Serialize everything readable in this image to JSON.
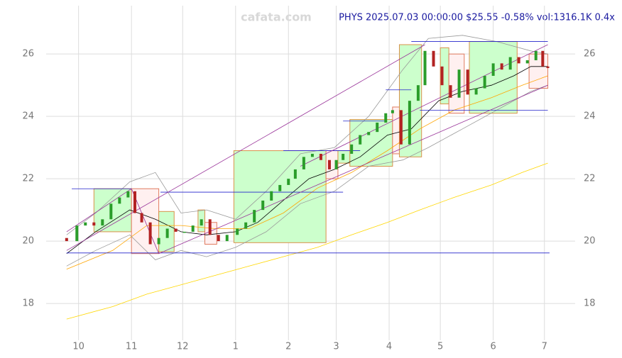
{
  "chart_data": {
    "type": "candlestick",
    "watermark": "cafata.com",
    "title": "PHYS 2025.07.03 00:00:00 $25.55 -0.58% vol:1316.1K 0.4x",
    "xlim": [
      -19,
      291
    ],
    "ylim": [
      16.82,
      27.55
    ],
    "xticks": [
      {
        "value": 0,
        "label": "10"
      },
      {
        "value": 31,
        "label": "11"
      },
      {
        "value": 61,
        "label": "12"
      },
      {
        "value": 92,
        "label": "1"
      },
      {
        "value": 123,
        "label": "2"
      },
      {
        "value": 151,
        "label": "3"
      },
      {
        "value": 182,
        "label": "4"
      },
      {
        "value": 212,
        "label": "5"
      },
      {
        "value": 243,
        "label": "6"
      },
      {
        "value": 273,
        "label": "7"
      }
    ],
    "yticks": [
      18,
      20,
      22,
      24,
      26
    ],
    "grid": true,
    "up_color": "#2a9d2a",
    "down_color": "#b22222",
    "candles": [
      {
        "x": -7,
        "open": 20.1,
        "close": 20.0
      },
      {
        "x": -1,
        "open": 20.0,
        "close": 20.5
      },
      {
        "x": 4,
        "open": 20.5,
        "close": 20.6
      },
      {
        "x": 9,
        "open": 20.6,
        "close": 20.5
      },
      {
        "x": 14,
        "open": 20.5,
        "close": 20.7
      },
      {
        "x": 19,
        "open": 20.7,
        "close": 21.2
      },
      {
        "x": 24,
        "open": 21.2,
        "close": 21.4
      },
      {
        "x": 29,
        "open": 21.4,
        "close": 21.6
      },
      {
        "x": 33,
        "open": 21.6,
        "close": 20.9
      },
      {
        "x": 37,
        "open": 20.9,
        "close": 20.6
      },
      {
        "x": 42,
        "open": 20.6,
        "close": 19.9
      },
      {
        "x": 47,
        "open": 19.9,
        "close": 20.1
      },
      {
        "x": 52,
        "open": 20.1,
        "close": 20.4
      },
      {
        "x": 57,
        "open": 20.4,
        "close": 20.3
      },
      {
        "x": 62,
        "open": 20.3,
        "close": 20.3
      },
      {
        "x": 67,
        "open": 20.3,
        "close": 20.5
      },
      {
        "x": 72,
        "open": 20.5,
        "close": 20.7
      },
      {
        "x": 77,
        "open": 20.7,
        "close": 20.2
      },
      {
        "x": 82,
        "open": 20.2,
        "close": 20.0
      },
      {
        "x": 87,
        "open": 20.0,
        "close": 20.2
      },
      {
        "x": 93,
        "open": 20.2,
        "close": 20.4
      },
      {
        "x": 98,
        "open": 20.4,
        "close": 20.6
      },
      {
        "x": 103,
        "open": 20.6,
        "close": 21.0
      },
      {
        "x": 108,
        "open": 21.0,
        "close": 21.3
      },
      {
        "x": 113,
        "open": 21.3,
        "close": 21.6
      },
      {
        "x": 118,
        "open": 21.6,
        "close": 21.8
      },
      {
        "x": 123,
        "open": 21.8,
        "close": 22.0
      },
      {
        "x": 127,
        "open": 22.0,
        "close": 22.3
      },
      {
        "x": 132,
        "open": 22.3,
        "close": 22.7
      },
      {
        "x": 137,
        "open": 22.7,
        "close": 22.8
      },
      {
        "x": 142,
        "open": 22.8,
        "close": 22.6
      },
      {
        "x": 147,
        "open": 22.6,
        "close": 22.3
      },
      {
        "x": 151,
        "open": 22.3,
        "close": 22.6
      },
      {
        "x": 155,
        "open": 22.6,
        "close": 22.8
      },
      {
        "x": 160,
        "open": 22.8,
        "close": 23.1
      },
      {
        "x": 165,
        "open": 23.1,
        "close": 23.4
      },
      {
        "x": 170,
        "open": 23.4,
        "close": 23.5
      },
      {
        "x": 175,
        "open": 23.5,
        "close": 23.8
      },
      {
        "x": 180,
        "open": 23.8,
        "close": 24.1
      },
      {
        "x": 184,
        "open": 24.1,
        "close": 24.2
      },
      {
        "x": 189,
        "open": 24.2,
        "close": 23.1
      },
      {
        "x": 194,
        "open": 23.1,
        "close": 24.5
      },
      {
        "x": 199,
        "open": 24.5,
        "close": 25.0
      },
      {
        "x": 203,
        "open": 25.0,
        "close": 26.1
      },
      {
        "x": 208,
        "open": 26.1,
        "close": 25.6
      },
      {
        "x": 213,
        "open": 25.6,
        "close": 25.0
      },
      {
        "x": 218,
        "open": 25.0,
        "close": 24.6
      },
      {
        "x": 223,
        "open": 24.6,
        "close": 25.5
      },
      {
        "x": 228,
        "open": 25.5,
        "close": 24.7
      },
      {
        "x": 233,
        "open": 24.7,
        "close": 24.9
      },
      {
        "x": 238,
        "open": 24.9,
        "close": 25.3
      },
      {
        "x": 243,
        "open": 25.3,
        "close": 25.7
      },
      {
        "x": 248,
        "open": 25.7,
        "close": 25.5
      },
      {
        "x": 253,
        "open": 25.5,
        "close": 25.9
      },
      {
        "x": 258,
        "open": 25.9,
        "close": 25.7
      },
      {
        "x": 263,
        "open": 25.7,
        "close": 25.8
      },
      {
        "x": 268,
        "open": 25.8,
        "close": 26.1
      },
      {
        "x": 272,
        "open": 26.1,
        "close": 25.6
      },
      {
        "x": 275,
        "open": 25.6,
        "close": 25.55
      }
    ],
    "series": [
      {
        "color": "#000000",
        "x": [
          -7,
          10,
          30,
          45,
          60,
          75,
          92,
          105,
          122,
          135,
          150,
          165,
          181,
          195,
          211,
          225,
          242,
          255,
          265,
          275
        ],
        "values": [
          19.6,
          20.3,
          21.0,
          20.7,
          20.3,
          20.2,
          20.3,
          20.6,
          21.4,
          22.0,
          22.3,
          22.7,
          23.4,
          23.6,
          24.5,
          24.8,
          25.0,
          25.3,
          25.6,
          25.6
        ]
      },
      {
        "color": "#ffa500",
        "x": [
          -7,
          20,
          40,
          60,
          80,
          100,
          120,
          140,
          160,
          181,
          200,
          220,
          242,
          260,
          275
        ],
        "values": [
          19.1,
          19.7,
          20.5,
          20.5,
          20.4,
          20.4,
          20.9,
          21.7,
          22.2,
          22.9,
          23.6,
          24.2,
          24.6,
          25.0,
          25.3
        ]
      },
      {
        "color": "#ffd700",
        "x": [
          -7,
          20,
          40,
          60,
          80,
          100,
          120,
          140,
          160,
          181,
          200,
          220,
          242,
          260,
          275
        ],
        "values": [
          17.5,
          17.9,
          18.3,
          18.6,
          18.9,
          19.2,
          19.5,
          19.8,
          20.2,
          20.6,
          21.0,
          21.4,
          21.8,
          22.2,
          22.5
        ]
      },
      {
        "color": "#999999",
        "x": [
          -7,
          10,
          30,
          45,
          60,
          75,
          92,
          110,
          130,
          150,
          170,
          190,
          205,
          225,
          245,
          265,
          275
        ],
        "values": [
          20.2,
          20.9,
          21.9,
          22.2,
          20.9,
          21.0,
          20.7,
          21.6,
          22.8,
          23.0,
          24.0,
          25.5,
          26.5,
          26.6,
          26.4,
          26.1,
          26.0
        ]
      },
      {
        "color": "#999999",
        "x": [
          -7,
          10,
          30,
          45,
          60,
          75,
          92,
          110,
          130,
          150,
          170,
          190,
          205,
          225,
          245,
          265,
          275
        ],
        "values": [
          19.2,
          19.7,
          20.2,
          19.4,
          19.7,
          19.5,
          19.8,
          20.3,
          21.2,
          21.6,
          22.4,
          22.6,
          23.0,
          23.6,
          24.2,
          24.8,
          25.0
        ]
      }
    ],
    "boxes": [
      {
        "x0": 9,
        "x1": 31,
        "y0": 20.3,
        "y1": 21.68,
        "up": true
      },
      {
        "x0": 31,
        "x1": 47,
        "y0": 19.6,
        "y1": 21.68,
        "up": false
      },
      {
        "x0": 47,
        "x1": 56,
        "y0": 19.66,
        "y1": 20.95,
        "up": true
      },
      {
        "x0": 70,
        "x1": 74,
        "y0": 20.3,
        "y1": 21.0,
        "up": true
      },
      {
        "x0": 74,
        "x1": 81,
        "y0": 19.9,
        "y1": 20.6,
        "up": false
      },
      {
        "x0": 91,
        "x1": 145,
        "y0": 19.95,
        "y1": 22.9,
        "up": true
      },
      {
        "x0": 145,
        "x1": 152,
        "y0": 22.0,
        "y1": 22.9,
        "up": false
      },
      {
        "x0": 152,
        "x1": 159,
        "y0": 22.5,
        "y1": 22.9,
        "up": true
      },
      {
        "x0": 159,
        "x1": 184,
        "y0": 22.4,
        "y1": 23.9,
        "up": true
      },
      {
        "x0": 184,
        "x1": 188,
        "y0": 22.8,
        "y1": 24.3,
        "up": false
      },
      {
        "x0": 188,
        "x1": 201,
        "y0": 22.7,
        "y1": 26.3,
        "up": true
      },
      {
        "x0": 212,
        "x1": 217,
        "y0": 24.4,
        "y1": 26.2,
        "up": true
      },
      {
        "x0": 217,
        "x1": 226,
        "y0": 24.1,
        "y1": 26.0,
        "up": false
      },
      {
        "x0": 229,
        "x1": 257,
        "y0": 24.1,
        "y1": 26.4,
        "up": true
      },
      {
        "x0": 264,
        "x1": 275,
        "y0": 24.9,
        "y1": 26.0,
        "up": false
      }
    ],
    "levels": [
      {
        "x0": -4,
        "x1": 31,
        "y": 21.68
      },
      {
        "x0": 48,
        "x1": 155,
        "y": 21.57
      },
      {
        "x0": 120,
        "x1": 165,
        "y": 22.9
      },
      {
        "x0": 155,
        "x1": 180,
        "y": 23.85
      },
      {
        "x0": 180,
        "x1": 195,
        "y": 24.85
      },
      {
        "x0": 195,
        "x1": 275,
        "y": 26.4
      },
      {
        "x0": 200,
        "x1": 275,
        "y": 24.2
      },
      {
        "x0": -7,
        "x1": 276,
        "y": 19.62
      }
    ],
    "trendlines": [
      {
        "x0": -7,
        "y0": 19.7,
        "x1": 203,
        "y1": 26.3
      },
      {
        "x0": 31,
        "y0": 21.68,
        "x1": 47,
        "y1": 19.6
      },
      {
        "x0": 47,
        "y0": 19.6,
        "x1": 275,
        "y1": 25.0
      },
      {
        "x0": -7,
        "y0": 20.3,
        "x1": 31,
        "y1": 21.68
      },
      {
        "x0": 130,
        "y0": 22.4,
        "x1": 275,
        "y1": 26.3
      }
    ]
  }
}
